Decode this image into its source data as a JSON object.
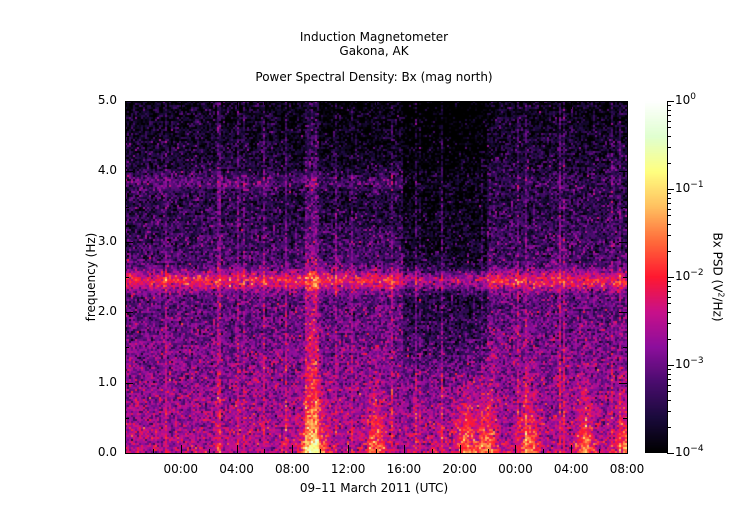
{
  "chart_data": {
    "type": "heatmap",
    "title_lines": [
      "Induction Magnetometer",
      "Gakona, AK"
    ],
    "subtitle": "Power Spectral Density: Bx (mag north)",
    "xlabel": "09–11 March 2011 (UTC)",
    "ylabel": "frequency (Hz)",
    "xlim_hours": [
      -4,
      32
    ],
    "x_ticks": [
      "00:00",
      "04:00",
      "08:00",
      "12:00",
      "16:00",
      "20:00",
      "00:00",
      "04:00",
      "08:00"
    ],
    "x_tick_hours": [
      0,
      4,
      8,
      12,
      16,
      20,
      24,
      28,
      32
    ],
    "ylim": [
      0,
      5
    ],
    "y_ticks": [
      "0.0",
      "1.0",
      "2.0",
      "3.0",
      "4.0",
      "5.0"
    ],
    "colorbar": {
      "label": "Bx PSD (V²/Hz)",
      "label_prefix": "Bx PSD (V",
      "label_sup": "2",
      "label_suffix": "/Hz)",
      "scale": "log",
      "range": [
        0.0001,
        1
      ],
      "ticks": [
        {
          "base": "10",
          "exp": "0"
        },
        {
          "base": "10",
          "exp": "−1"
        },
        {
          "base": "10",
          "exp": "−2"
        },
        {
          "base": "10",
          "exp": "−3"
        },
        {
          "base": "10",
          "exp": "−4"
        }
      ],
      "colormap": [
        "#000000",
        "#1a0a3c",
        "#4a0c6e",
        "#8c0e9c",
        "#c8108a",
        "#ff1830",
        "#ff6a3a",
        "#ffc060",
        "#ffff80",
        "#e0ffd0",
        "#ffffff"
      ]
    },
    "features": {
      "bands_hz": [
        2.45,
        3.85
      ],
      "dark_interval_hours": [
        16,
        22
      ],
      "low_freq_bursts_hours": [
        9.5,
        14,
        20.5,
        22,
        25,
        29,
        32
      ]
    }
  }
}
